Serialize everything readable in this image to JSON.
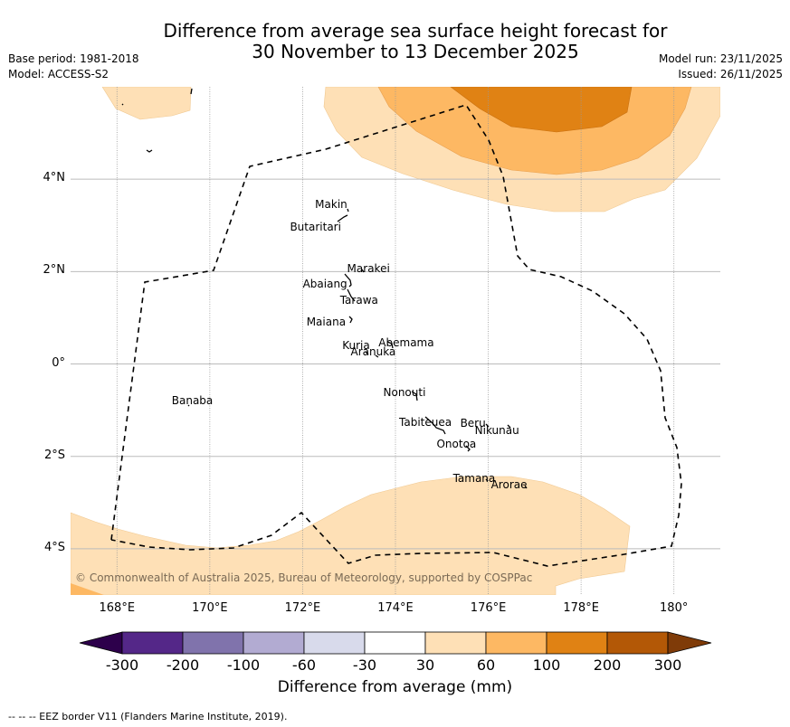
{
  "title": {
    "line1": "Difference from average sea surface height forecast for",
    "line2": "30 November to 13 December 2025"
  },
  "meta_left": {
    "base_period": "Base period: 1981-2018",
    "model": "Model: ACCESS-S2"
  },
  "meta_right": {
    "model_run": "Model run: 23/11/2025",
    "issued": "Issued: 26/11/2025"
  },
  "map": {
    "lon_range": [
      167.0,
      181.0
    ],
    "lat_range": [
      -5.0,
      6.0
    ],
    "x_ticks": [
      {
        "lon": 168,
        "label": "168°E"
      },
      {
        "lon": 170,
        "label": "170°E"
      },
      {
        "lon": 172,
        "label": "172°E"
      },
      {
        "lon": 174,
        "label": "174°E"
      },
      {
        "lon": 176,
        "label": "176°E"
      },
      {
        "lon": 178,
        "label": "178°E"
      },
      {
        "lon": 180,
        "label": "180°"
      }
    ],
    "y_ticks": [
      {
        "lat": 4,
        "label": "4°N"
      },
      {
        "lat": 2,
        "label": "2°N"
      },
      {
        "lat": 0,
        "label": "0°"
      },
      {
        "lat": -2,
        "label": "2°S"
      },
      {
        "lat": -4,
        "label": "4°S"
      }
    ],
    "islands": [
      {
        "name": "Makin",
        "lon": 172.97,
        "lat": 3.25
      },
      {
        "name": "Butaritari",
        "lon": 172.8,
        "lat": 3.07
      },
      {
        "name": "Marakei",
        "lon": 173.27,
        "lat": 2.0
      },
      {
        "name": "Abaiang",
        "lon": 172.9,
        "lat": 1.8
      },
      {
        "name": "Tarawa",
        "lon": 173.0,
        "lat": 1.4
      },
      {
        "name": "Maiana",
        "lon": 173.0,
        "lat": 0.95
      },
      {
        "name": "Abemama",
        "lon": 173.85,
        "lat": 0.4
      },
      {
        "name": "Kuria",
        "lon": 173.4,
        "lat": 0.22
      },
      {
        "name": "Aranuka",
        "lon": 173.6,
        "lat": 0.17
      },
      {
        "name": "Banaba",
        "lon": 169.53,
        "lat": -0.86
      },
      {
        "name": "Nonouti",
        "lon": 174.4,
        "lat": -0.65
      },
      {
        "name": "Tabiteuea",
        "lon": 174.8,
        "lat": -1.3
      },
      {
        "name": "Beru",
        "lon": 176.0,
        "lat": -1.33
      },
      {
        "name": "Nikunau",
        "lon": 176.45,
        "lat": -1.35
      },
      {
        "name": "Onotoa",
        "lon": 175.55,
        "lat": -1.8
      },
      {
        "name": "Tamana",
        "lon": 176.0,
        "lat": -2.5
      },
      {
        "name": "Arorae",
        "lon": 176.8,
        "lat": -2.65
      }
    ],
    "copyright": "© Commonwealth of Australia 2025, Bureau of Meteorology, supported by COSPPac"
  },
  "colorbar": {
    "title": "Difference from average (mm)",
    "bins": [
      {
        "from": null,
        "to": -300,
        "color": "#2d004b"
      },
      {
        "from": -300,
        "to": -200,
        "color": "#542788"
      },
      {
        "from": -200,
        "to": -100,
        "color": "#8073ac"
      },
      {
        "from": -100,
        "to": -60,
        "color": "#b2abd2"
      },
      {
        "from": -60,
        "to": -30,
        "color": "#d8daeb"
      },
      {
        "from": -30,
        "to": 30,
        "color": "#ffffff"
      },
      {
        "from": 30,
        "to": 60,
        "color": "#fee0b6"
      },
      {
        "from": 60,
        "to": 100,
        "color": "#fdb863"
      },
      {
        "from": 100,
        "to": 200,
        "color": "#e08214"
      },
      {
        "from": 200,
        "to": 300,
        "color": "#b35806"
      },
      {
        "from": 300,
        "to": null,
        "color": "#7f3b08"
      }
    ],
    "tick_labels": [
      "-300",
      "-200",
      "-100",
      "-60",
      "-30",
      "30",
      "60",
      "100",
      "200",
      "300"
    ]
  },
  "footnote": "--  --  -- EEZ border V11 (Flanders Marine Institute, 2019)."
}
